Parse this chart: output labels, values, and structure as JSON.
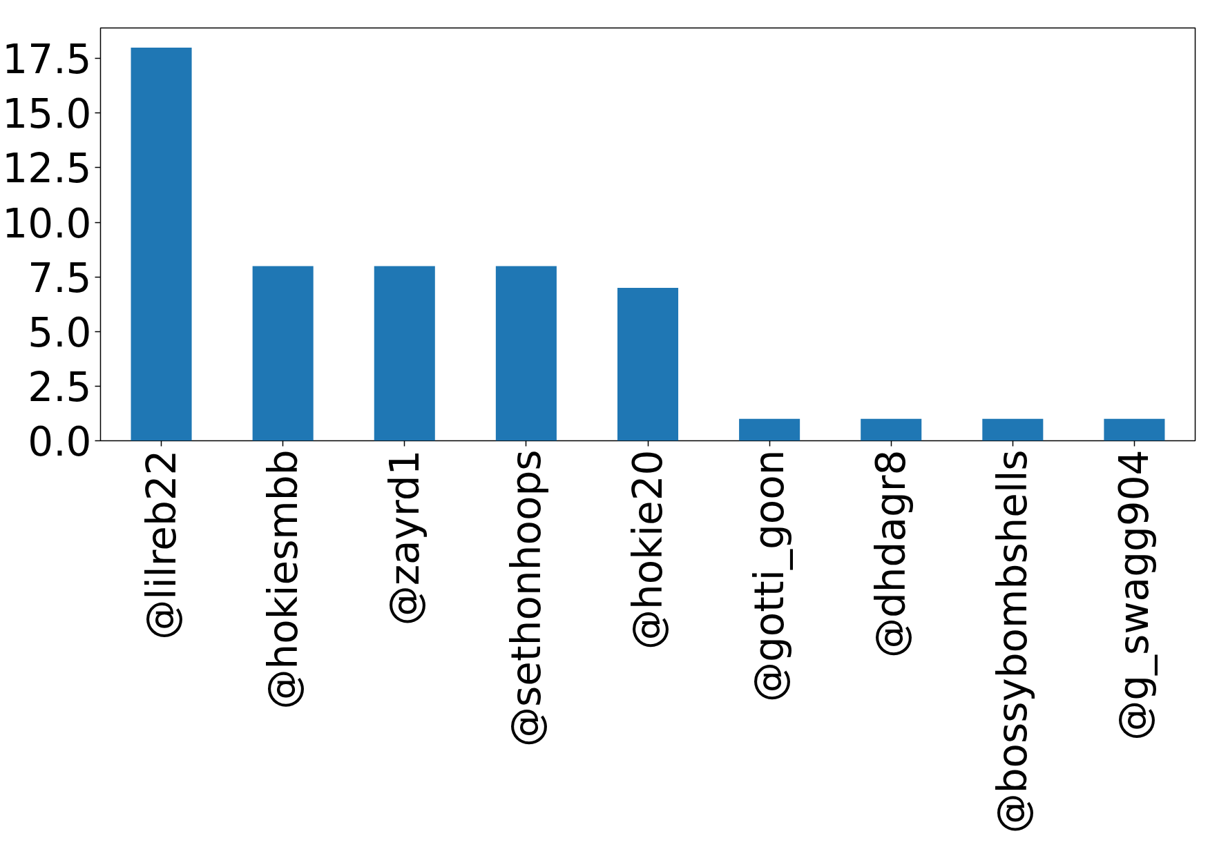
{
  "chart_data": {
    "type": "bar",
    "categories": [
      "@lilreb22",
      "@hokiesmbb",
      "@zayrd1",
      "@sethonhoops",
      "@hokie20",
      "@gotti_goon",
      "@dhdagr8",
      "@bossybombshells",
      "@g_swagg904"
    ],
    "values": [
      18,
      8,
      8,
      8,
      7,
      1,
      1,
      1,
      1
    ],
    "color": "#1f77b4",
    "ylim": [
      0,
      18.9
    ],
    "yticks": [
      {
        "value": 0,
        "label": "0.0"
      },
      {
        "value": 2.5,
        "label": "2.5"
      },
      {
        "value": 5,
        "label": "5.0"
      },
      {
        "value": 7.5,
        "label": "7.5"
      },
      {
        "value": 10,
        "label": "10.0"
      },
      {
        "value": 12.5,
        "label": "12.5"
      },
      {
        "value": 15,
        "label": "15.0"
      },
      {
        "value": 17.5,
        "label": "17.5"
      }
    ],
    "grid": false
  }
}
